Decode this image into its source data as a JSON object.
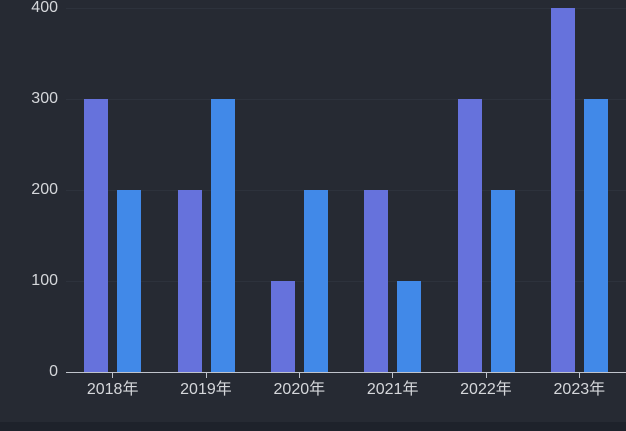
{
  "chart_data": {
    "type": "bar",
    "categories": [
      "2018年",
      "2019年",
      "2020年",
      "2021年",
      "2022年",
      "2023年"
    ],
    "series": [
      {
        "name": "purple",
        "color": "#6672dc",
        "values": [
          300,
          200,
          100,
          200,
          300,
          400
        ]
      },
      {
        "name": "blue",
        "color": "#4189e8",
        "values": [
          200,
          300,
          200,
          100,
          200,
          300
        ]
      }
    ],
    "title": "",
    "xlabel": "",
    "ylabel": "",
    "ylim": [
      0,
      400
    ],
    "yticks": [
      0,
      100,
      200,
      300,
      400
    ],
    "grid": true,
    "legend_position": "none"
  },
  "colors": {
    "background": "#262a33",
    "page_edge": "#1e222b",
    "axis": "#c0c4cc",
    "label": "#d5d7db",
    "gridline": "#2d323c"
  }
}
